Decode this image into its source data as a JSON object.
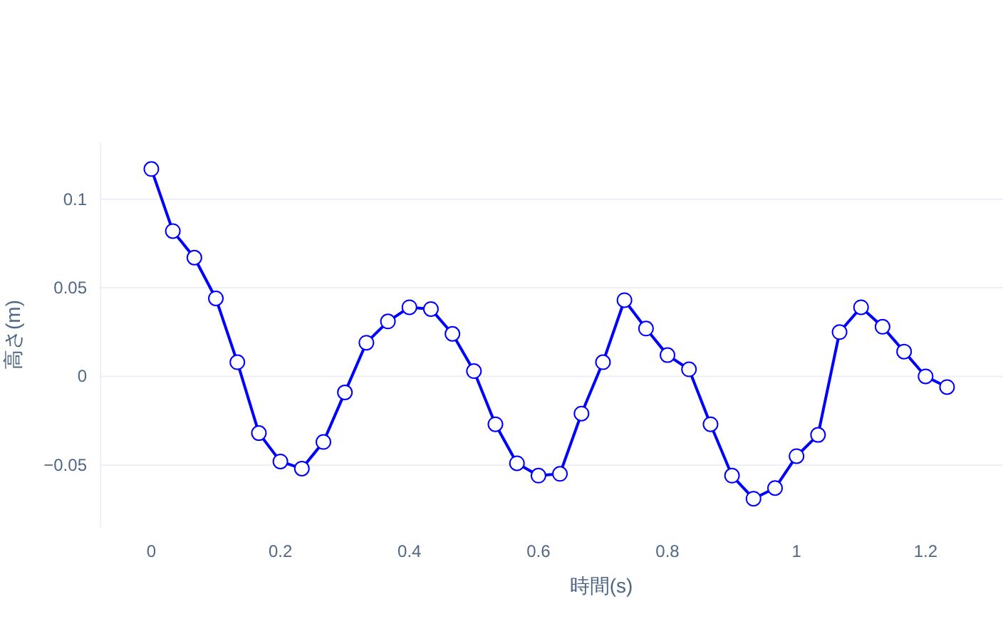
{
  "chart_data": {
    "type": "line",
    "xlabel": "時間(s)",
    "ylabel": "高さ(m)",
    "x": [
      0,
      0.0333,
      0.0667,
      0.1,
      0.1333,
      0.1667,
      0.2,
      0.2333,
      0.2667,
      0.3,
      0.3333,
      0.3667,
      0.4,
      0.4333,
      0.4667,
      0.5,
      0.5333,
      0.5667,
      0.6,
      0.6333,
      0.6667,
      0.7,
      0.7333,
      0.7667,
      0.8,
      0.8333,
      0.8667,
      0.9,
      0.9333,
      0.9667,
      1,
      1.0333,
      1.0667,
      1.1,
      1.1333,
      1.1667,
      1.2,
      1.2333
    ],
    "series": [
      {
        "color": "#0000ff",
        "values": [
          0.117,
          0.082,
          0.067,
          0.044,
          0.008,
          -0.032,
          -0.048,
          -0.052,
          -0.037,
          -0.009,
          0.019,
          0.031,
          0.039,
          0.038,
          0.024,
          0.003,
          -0.027,
          -0.049,
          -0.056,
          -0.055,
          -0.021,
          0.008,
          0.043,
          0.027,
          0.012,
          0.004,
          -0.027,
          -0.056,
          -0.069,
          -0.063,
          -0.045,
          -0.033,
          0.025,
          0.039,
          0.028,
          0.014,
          0.0,
          -0.006
        ]
      }
    ],
    "xlim": [
      -0.08,
      1.32
    ],
    "ylim": [
      -0.085,
      0.132
    ],
    "xticks": [
      0,
      0.2,
      0.4,
      0.6,
      0.8,
      1,
      1.2
    ],
    "yticks": [
      {
        "value": -0.05,
        "label": "−0.05"
      },
      0,
      0.05,
      0.1
    ],
    "grid": "y",
    "marker": "circle",
    "line_style": "solid"
  }
}
